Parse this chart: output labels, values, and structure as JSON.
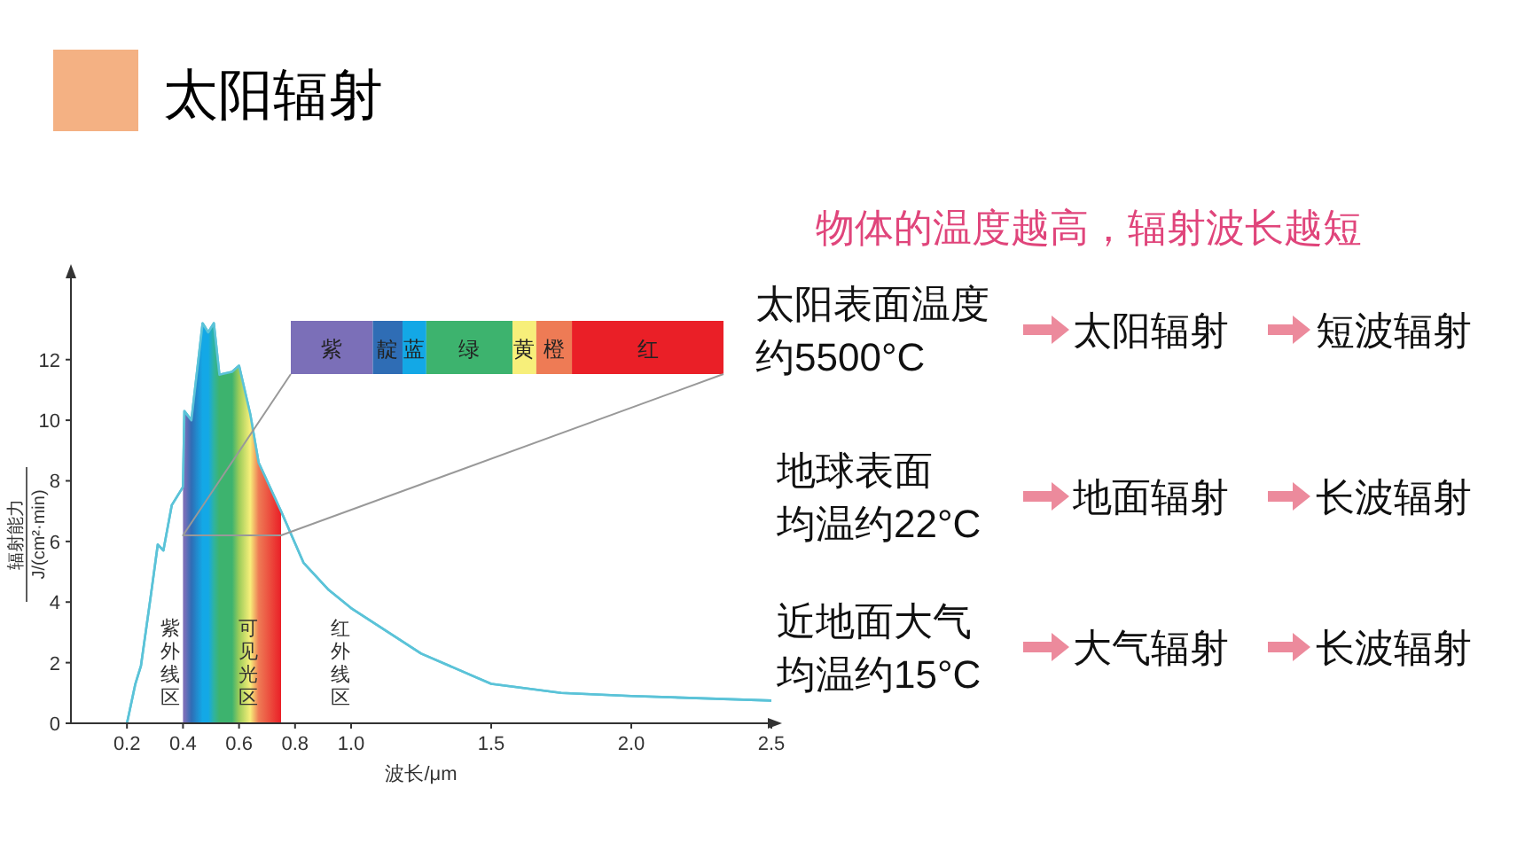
{
  "chart_data": {
    "type": "line",
    "title": "太阳辐射",
    "subtitle": "物体的温度越高，辐射波长越短",
    "xlabel": "波长/μm",
    "ylabel": "辐射能力\nJ/(cm²·min)",
    "xlim": [
      0,
      2.5
    ],
    "ylim": [
      0,
      14.8
    ],
    "xticks": [
      0.2,
      0.4,
      0.6,
      0.8,
      {
        "value": 1,
        "label": "1.0"
      },
      1.5,
      {
        "value": 2,
        "label": "2.0"
      },
      2.5
    ],
    "yticks": [
      0,
      2,
      4,
      6,
      8,
      10,
      12
    ],
    "grid": false,
    "series": [
      {
        "type": "line",
        "color": "#5bc3d8",
        "x": [
          0.2,
          0.23,
          0.25,
          0.285,
          0.31,
          0.33,
          0.36,
          0.4,
          0.405,
          0.43,
          0.47,
          0.49,
          0.51,
          0.53,
          0.575,
          0.6,
          0.64,
          0.67,
          0.75,
          0.83,
          0.92,
          1.0,
          1.25,
          1.5,
          1.75,
          2.0,
          2.5
        ],
        "values": [
          0,
          1.3,
          1.9,
          4.2,
          5.9,
          5.7,
          7.2,
          7.8,
          10.3,
          10,
          13.2,
          12.9,
          13.2,
          11.5,
          11.6,
          11.8,
          10.2,
          8.6,
          7,
          5.3,
          4.4,
          3.8,
          2.3,
          1.3,
          1,
          0.9,
          0.75
        ]
      },
      {
        "type": "area",
        "colors": [
          "#7b6fb8",
          "#7b6fb8",
          "#2f6db5",
          "#13a8e6",
          "#13a8e6",
          "#2fb3a0",
          "#3db36e",
          "#3db36e",
          "#9ccc5a",
          "#f7ef7a",
          "#ee7b55",
          "#ea1f27"
        ],
        "x": [
          0.4,
          0.405,
          0.43,
          0.47,
          0.49,
          0.51,
          0.53,
          0.575,
          0.6,
          0.64,
          0.67,
          0.75
        ],
        "values": [
          7.8,
          10.3,
          10,
          13.2,
          12.9,
          13.2,
          11.5,
          11.6,
          11.8,
          10.2,
          8.6,
          7
        ]
      }
    ],
    "annotations": [
      "紫",
      "靛",
      "蓝",
      "绿",
      "黄",
      "橙",
      "红",
      "紫外线区",
      "可见光区",
      "红外线区",
      "太阳表面温度",
      "约5500°C",
      "太阳辐射",
      "短波辐射",
      "地球表面",
      "均温约22°C",
      "地面辐射",
      "长波辐射",
      "近地面大气",
      "均温约15°C",
      "大气辐射",
      "长波辐射"
    ]
  }
}
